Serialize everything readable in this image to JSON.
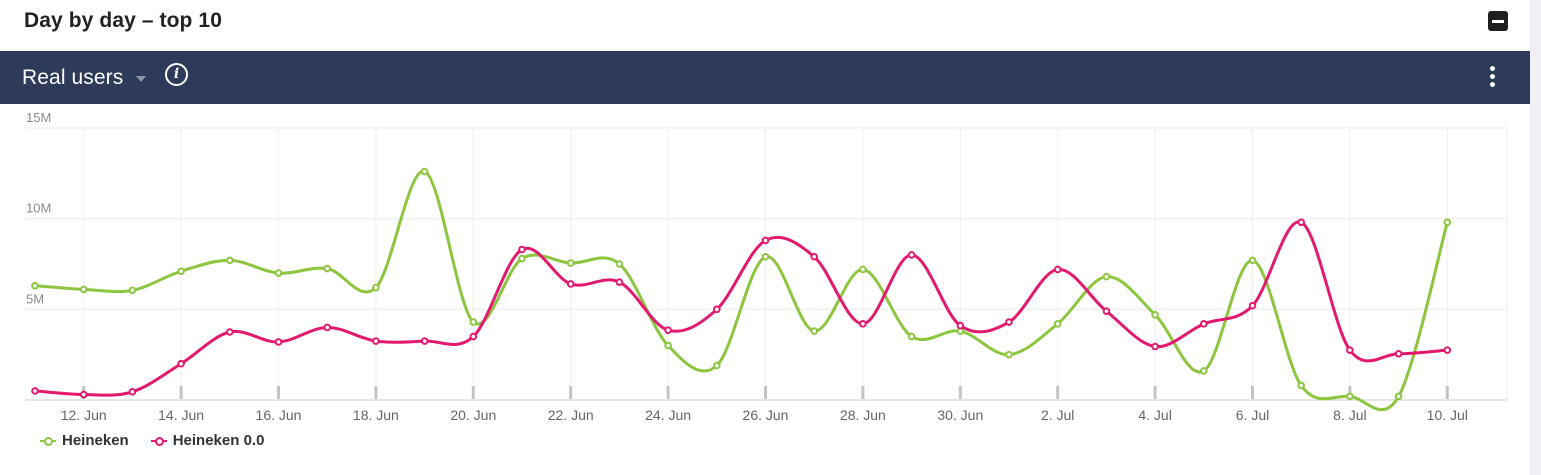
{
  "header": {
    "title": "Day by day – top 10"
  },
  "toolbar": {
    "metric": "Real users"
  },
  "icons": {
    "info": "info-icon",
    "collapse": "minus-square-icon",
    "menu": "more-vertical-icon",
    "caret": "caret-down-icon"
  },
  "colors": {
    "toolbar_bg": "#2e3a59",
    "heineken": "#8cc63f",
    "heineken_zero": "#e3186f"
  },
  "chart_data": {
    "type": "line",
    "title": "",
    "xlabel": "",
    "ylabel": "",
    "ylim": [
      0,
      15000000
    ],
    "yticks": [
      {
        "value": 5000000,
        "label": "5M"
      },
      {
        "value": 10000000,
        "label": "10M"
      },
      {
        "value": 15000000,
        "label": "15M"
      }
    ],
    "x": [
      "11 Jun",
      "12 Jun",
      "13 Jun",
      "14 Jun",
      "15 Jun",
      "16 Jun",
      "17 Jun",
      "18 Jun",
      "19 Jun",
      "20 Jun",
      "21 Jun",
      "22 Jun",
      "23 Jun",
      "24 Jun",
      "25 Jun",
      "26 Jun",
      "27 Jun",
      "28 Jun",
      "29 Jun",
      "30 Jun",
      "1 Jul",
      "2 Jul",
      "3 Jul",
      "4 Jul",
      "5 Jul",
      "6 Jul",
      "7 Jul",
      "8 Jul",
      "9 Jul",
      "10 Jul"
    ],
    "xticks": [
      {
        "index": 1,
        "label": "12. Jun"
      },
      {
        "index": 3,
        "label": "14. Jun"
      },
      {
        "index": 5,
        "label": "16. Jun"
      },
      {
        "index": 7,
        "label": "18. Jun"
      },
      {
        "index": 9,
        "label": "20. Jun"
      },
      {
        "index": 11,
        "label": "22. Jun"
      },
      {
        "index": 13,
        "label": "24. Jun"
      },
      {
        "index": 15,
        "label": "26. Jun"
      },
      {
        "index": 17,
        "label": "28. Jun"
      },
      {
        "index": 19,
        "label": "30. Jun"
      },
      {
        "index": 21,
        "label": "2. Jul"
      },
      {
        "index": 23,
        "label": "4. Jul"
      },
      {
        "index": 25,
        "label": "6. Jul"
      },
      {
        "index": 27,
        "label": "8. Jul"
      },
      {
        "index": 29,
        "label": "10. Jul"
      }
    ],
    "series": [
      {
        "name": "Heineken",
        "color": "#8cc63f",
        "values": [
          6300000,
          6100000,
          6050000,
          7100000,
          7700000,
          7000000,
          7250000,
          6200000,
          12600000,
          4300000,
          7800000,
          7550000,
          7500000,
          3000000,
          1900000,
          7900000,
          3800000,
          7200000,
          3500000,
          3800000,
          2500000,
          4200000,
          6800000,
          4700000,
          1600000,
          7700000,
          800000,
          200000,
          200000,
          9800000
        ]
      },
      {
        "name": "Heineken 0.0",
        "color": "#e3186f",
        "values": [
          500000,
          300000,
          450000,
          2000000,
          3750000,
          3200000,
          4000000,
          3250000,
          3250000,
          3500000,
          8300000,
          6400000,
          6500000,
          3850000,
          5000000,
          8800000,
          7900000,
          4200000,
          8000000,
          4100000,
          4300000,
          7200000,
          4900000,
          2950000,
          4200000,
          5200000,
          9800000,
          2750000,
          2550000,
          2750000
        ]
      }
    ],
    "grid": true,
    "legend_position": "bottom-left"
  }
}
